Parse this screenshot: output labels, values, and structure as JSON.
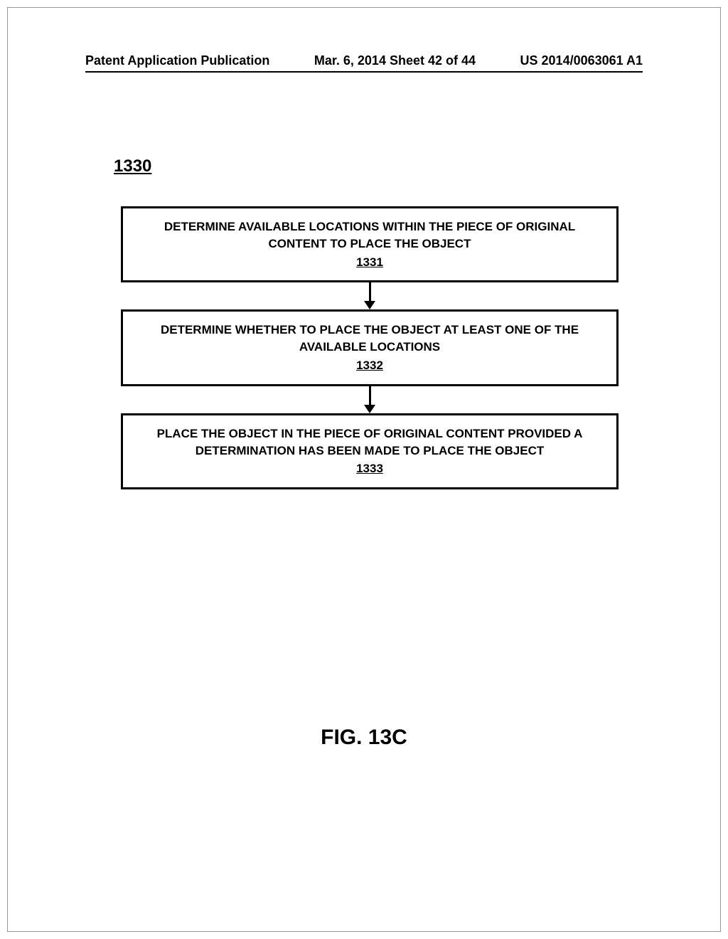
{
  "header": {
    "publication_type": "Patent Application Publication",
    "date_sheet": "Mar. 6, 2014  Sheet 42 of 44",
    "publication_number": "US 2014/0063061 A1"
  },
  "figure": {
    "reference_number": "1330",
    "caption": "FIG. 13C"
  },
  "flowchart": {
    "type": "flowchart",
    "background_color": "#ffffff",
    "box_border_color": "#000000",
    "box_border_width": 3,
    "arrow_color": "#000000",
    "arrow_width": 3,
    "text_color": "#000000",
    "font_weight": "bold",
    "box_font_size": 17,
    "nodes": [
      {
        "id": "1331",
        "text": "DETERMINE AVAILABLE LOCATIONS WITHIN THE PIECE OF ORIGINAL CONTENT TO PLACE THE OBJECT",
        "number": "1331"
      },
      {
        "id": "1332",
        "text": "DETERMINE WHETHER TO PLACE THE OBJECT AT  LEAST ONE OF THE AVAILABLE LOCATIONS",
        "number": "1332"
      },
      {
        "id": "1333",
        "text": "PLACE THE OBJECT IN THE PIECE OF ORIGINAL CONTENT PROVIDED A DETERMINATION HAS BEEN MADE TO PLACE THE OBJECT",
        "number": "1333"
      }
    ],
    "edges": [
      {
        "from": "1331",
        "to": "1332"
      },
      {
        "from": "1332",
        "to": "1333"
      }
    ]
  }
}
